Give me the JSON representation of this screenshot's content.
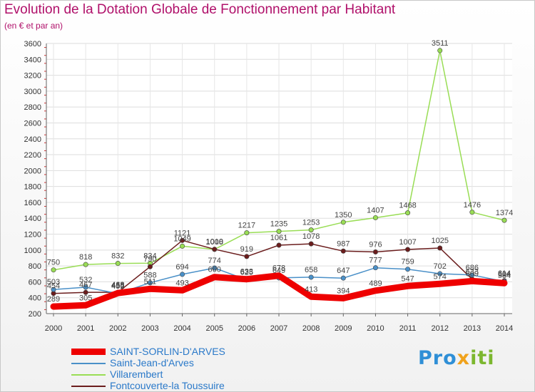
{
  "title": "Evolution de la Dotation Globale de Fonctionnement par Habitant",
  "subtitle": "(en € et par an)",
  "logo": {
    "part1": "Pro",
    "part2": "x",
    "part3": "iti"
  },
  "chart_data": {
    "type": "line",
    "title": "Evolution de la Dotation Globale de Fonctionnement par Habitant",
    "subtitle": "(en € et par an)",
    "xlabel": "",
    "ylabel": "",
    "ylim": [
      200,
      3600
    ],
    "yticks": [
      200,
      400,
      600,
      800,
      1000,
      1200,
      1400,
      1600,
      1800,
      2000,
      2200,
      2400,
      2600,
      2800,
      3000,
      3200,
      3400,
      3600
    ],
    "x": [
      "2000",
      "2001",
      "2002",
      "2003",
      "2004",
      "2005",
      "2006",
      "2007",
      "2008",
      "2009",
      "2010",
      "2011",
      "2012",
      "2013",
      "2014"
    ],
    "legend_position": "bottom-left",
    "series": [
      {
        "name": "SAINT-SORLIN-D'ARVES",
        "color": "#ee0000",
        "values": [
          289,
          305,
          458,
          511,
          493,
          660,
          633,
          678,
          413,
          394,
          489,
          547,
          574,
          609,
          584
        ]
      },
      {
        "name": "Saint-Jean-d'Arves",
        "color": "#4a90c8",
        "values": [
          503,
          532,
          452,
          588,
          694,
          774,
          625,
          649,
          658,
          647,
          777,
          759,
          702,
          686,
          604
        ]
      },
      {
        "name": "Villarembert",
        "color": "#99dd55",
        "values": [
          750,
          818,
          832,
          834,
          1049,
          1008,
          1217,
          1235,
          1253,
          1350,
          1407,
          1468,
          3511,
          1476,
          1374
        ]
      },
      {
        "name": "Fontcouverte-la Toussuire",
        "color": "#6b1d1d",
        "values": [
          454,
          467,
          468,
          790,
          1121,
          1010,
          919,
          1061,
          1078,
          987,
          976,
          1007,
          1025,
          633,
          614
        ]
      }
    ]
  }
}
